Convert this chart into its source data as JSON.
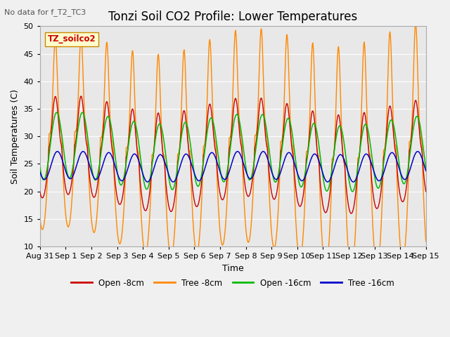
{
  "title": "Tonzi Soil CO2 Profile: Lower Temperatures",
  "subtitle": "No data for f_T2_TC3",
  "xlabel": "Time",
  "ylabel": "Soil Temperatures (C)",
  "ylim": [
    10,
    50
  ],
  "yticks": [
    10,
    15,
    20,
    25,
    30,
    35,
    40,
    45,
    50
  ],
  "bg_color": "#e8e8e8",
  "fig_bg": "#f0f0f0",
  "legend_labels": [
    "Open -8cm",
    "Tree -8cm",
    "Open -16cm",
    "Tree -16cm"
  ],
  "legend_colors": [
    "#cc0000",
    "#ff8800",
    "#00bb00",
    "#0000cc"
  ],
  "inset_label": "TZ_soilco2",
  "inset_bg": "#ffffcc",
  "inset_color": "#cc0000",
  "x_tick_labels": [
    "Aug 31",
    "Sep 1",
    "Sep 2",
    "Sep 3",
    "Sep 4",
    "Sep 5",
    "Sep 6",
    "Sep 7",
    "Sep 8",
    "Sep 9",
    "Sep 10",
    "Sep 11",
    "Sep 12",
    "Sep 13",
    "Sep 14",
    "Sep 15"
  ],
  "title_fontsize": 12,
  "label_fontsize": 9,
  "tick_fontsize": 8
}
